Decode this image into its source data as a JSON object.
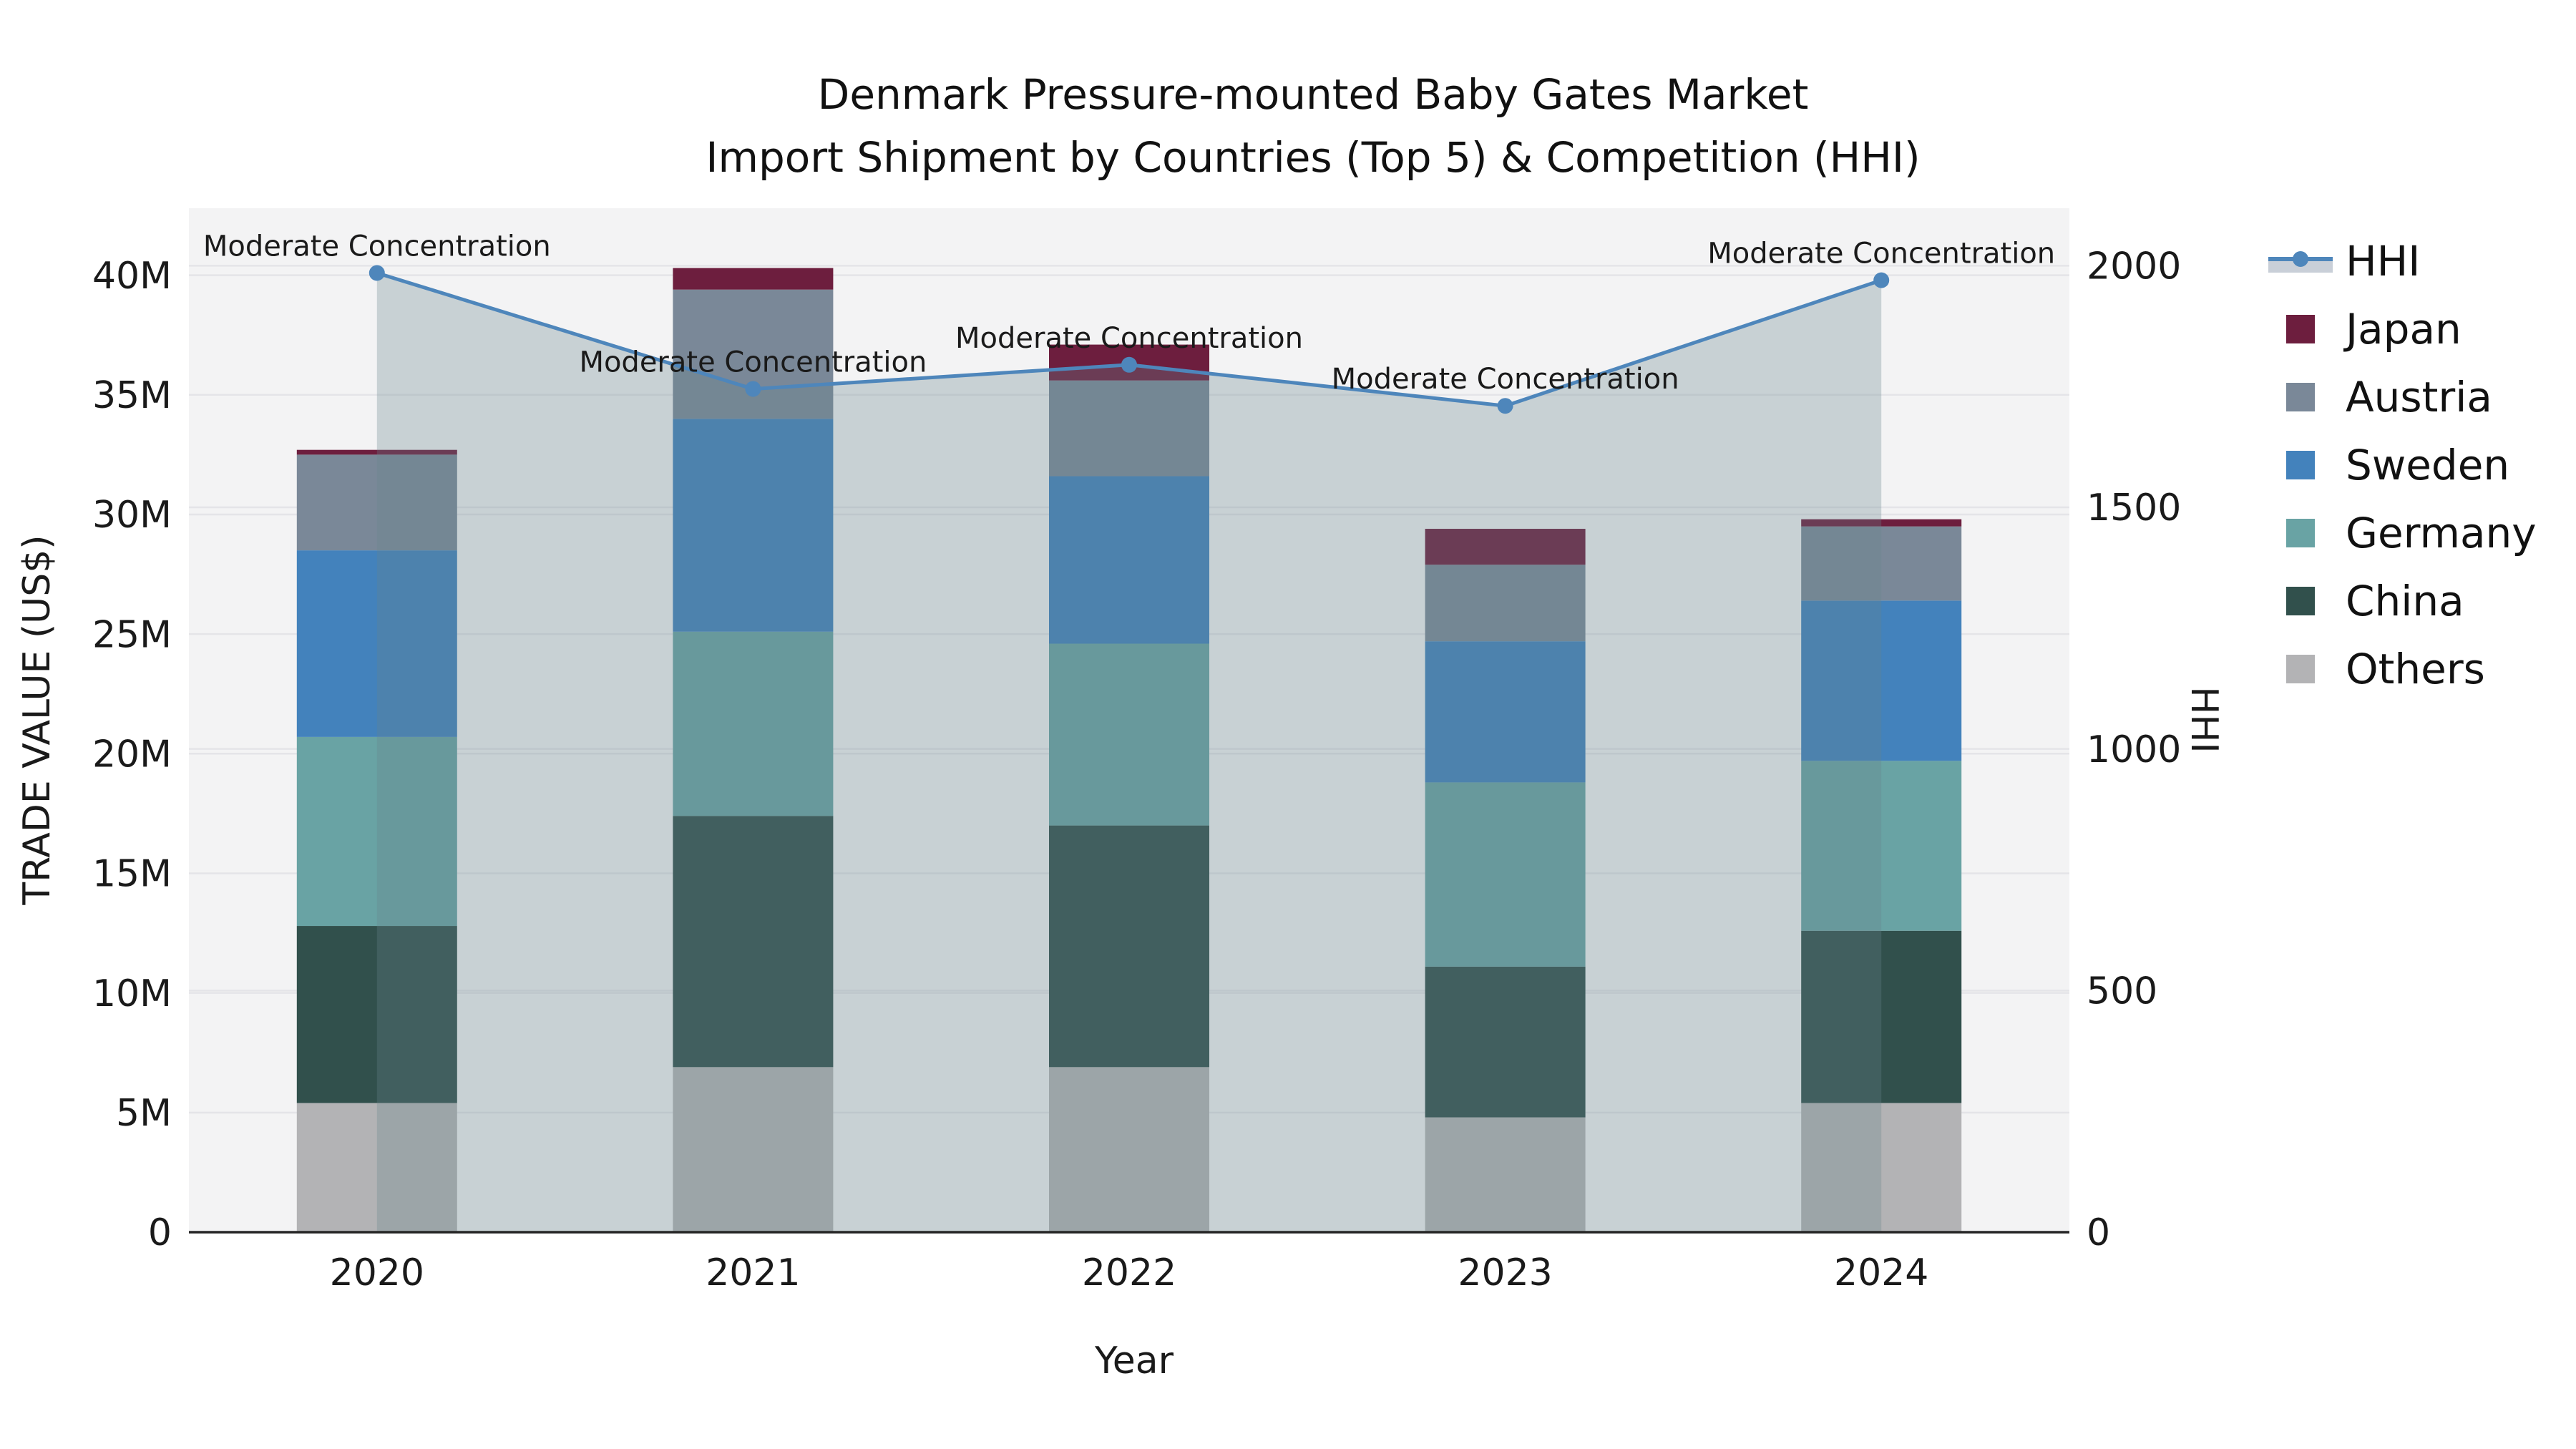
{
  "title": {
    "line1": "Denmark Pressure-mounted Baby Gates Market",
    "line2": "Import Shipment by Countries (Top 5) & Competition (HHI)"
  },
  "axis_titles": {
    "left": "TRADE VALUE (US$)",
    "right": "HHI",
    "bottom": "Year"
  },
  "legend": {
    "items": [
      {
        "label": "HHI",
        "type": "line"
      },
      {
        "label": "Japan",
        "type": "swatch"
      },
      {
        "label": "Austria",
        "type": "swatch"
      },
      {
        "label": "Sweden",
        "type": "swatch"
      },
      {
        "label": "Germany",
        "type": "swatch"
      },
      {
        "label": "China",
        "type": "swatch"
      },
      {
        "label": "Others",
        "type": "swatch"
      }
    ]
  },
  "colors": {
    "series": {
      "Japan": "#6D1E3E",
      "Austria": "#7A8898",
      "Sweden": "#4382BC",
      "Germany": "#69A3A4",
      "China": "#31504C",
      "Others": "#B3B3B5"
    },
    "hhi_line": "#4E86BB",
    "hhi_area_fill": "rgb(102,131,139)",
    "hhi_area_opacity": 0.3,
    "legend_band": "#C9CFD8",
    "plot_bg": "#F3F3F4",
    "grid": "#E4E4E8",
    "axis_line": "#262626",
    "text": "#1A1A1A"
  },
  "chart_data": {
    "type": "bar",
    "subtype": "stacked-bars-with-line-overlay",
    "title": "Denmark Pressure-mounted Baby Gates Market — Import Shipment by Countries (Top 5) & Competition (HHI)",
    "xlabel": "Year",
    "categories": [
      "2020",
      "2021",
      "2022",
      "2023",
      "2024"
    ],
    "bar_value_unit": "million US$ (trade value)",
    "stack_order_bottom_to_top": [
      "Others",
      "China",
      "Germany",
      "Sweden",
      "Austria",
      "Japan"
    ],
    "series": [
      {
        "name": "Others",
        "values": [
          5.4,
          6.9,
          6.9,
          4.8,
          5.4
        ]
      },
      {
        "name": "China",
        "values": [
          7.4,
          10.5,
          10.1,
          6.3,
          7.2
        ]
      },
      {
        "name": "Germany",
        "values": [
          7.9,
          7.7,
          7.6,
          7.7,
          7.1
        ]
      },
      {
        "name": "Sweden",
        "values": [
          7.8,
          8.9,
          7.0,
          5.9,
          6.7
        ]
      },
      {
        "name": "Austria",
        "values": [
          4.0,
          5.4,
          4.0,
          3.2,
          3.1
        ]
      },
      {
        "name": "Japan",
        "values": [
          0.2,
          0.9,
          1.5,
          1.5,
          0.3
        ]
      }
    ],
    "bar_totals_M": [
      32.7,
      40.3,
      37.1,
      29.4,
      29.8
    ],
    "line_series": {
      "name": "HHI",
      "axis": "right",
      "values": [
        1985,
        1745,
        1795,
        1710,
        1970
      ],
      "marker": "circle",
      "area_fill_under_line": true
    },
    "annotations": {
      "text": "Moderate Concentration",
      "one_per_point": true
    },
    "y_left": {
      "label": "TRADE VALUE (US$)",
      "tick_values_M": [
        0,
        5,
        10,
        15,
        20,
        25,
        30,
        35,
        40
      ],
      "tick_labels": [
        "0",
        "5M",
        "10M",
        "15M",
        "20M",
        "25M",
        "30M",
        "35M",
        "40M"
      ],
      "max_value_at_top": 42.8
    },
    "y_right": {
      "label": "HHI",
      "tick_values": [
        0,
        500,
        1000,
        1500,
        2000
      ],
      "tick_labels": [
        "0",
        "500",
        "1000",
        "1500",
        "2000"
      ],
      "max_value_at_top": 2119
    },
    "grid": true,
    "legend_position": "right"
  }
}
